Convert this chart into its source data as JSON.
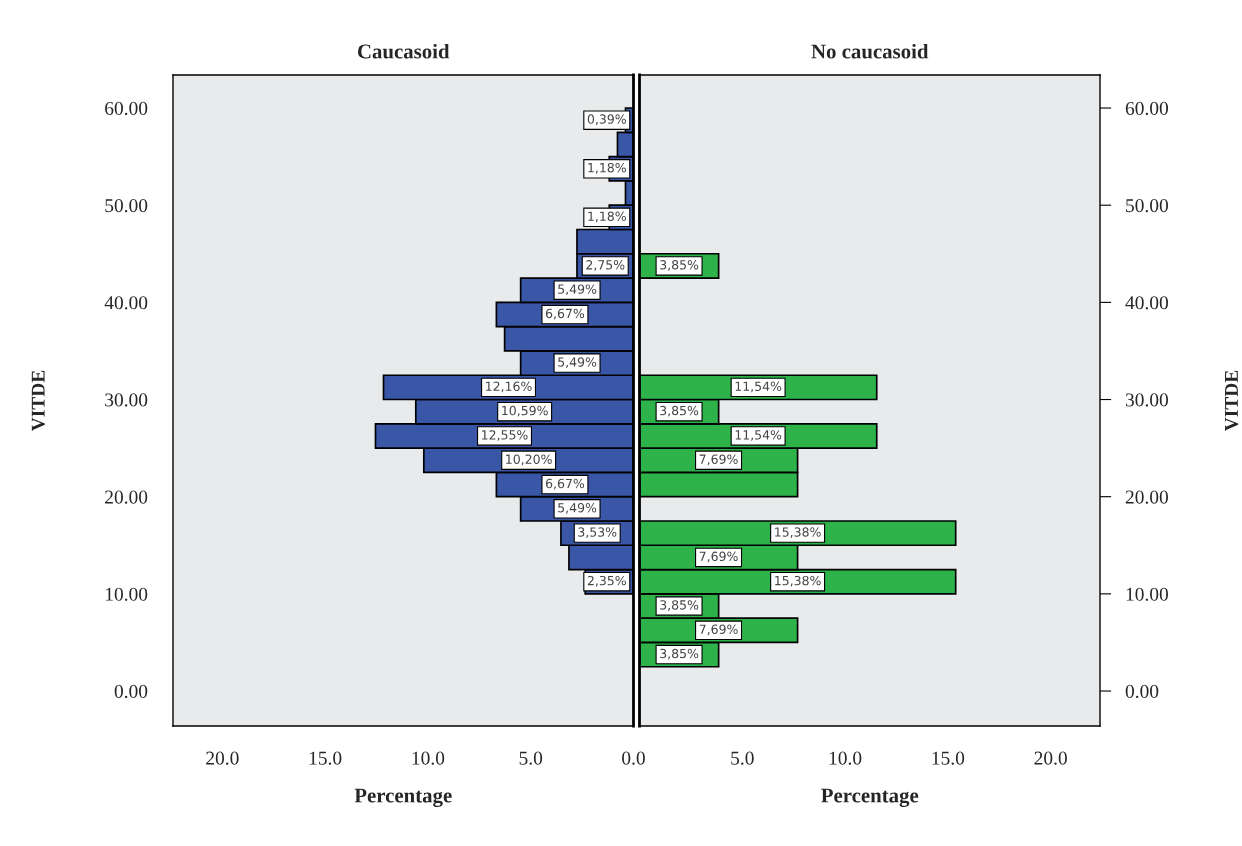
{
  "chart_data": [
    {
      "type": "histogram",
      "orientation": "horizontal",
      "title": "Caucasoid",
      "xlabel": "Percentage",
      "ylabel": "VITDE",
      "color": "#3a56a6",
      "bins": [
        2.5,
        5,
        7.5,
        10,
        12.5,
        15,
        17.5,
        20,
        22.5,
        25,
        27.5,
        30,
        32.5,
        35,
        37.5,
        40,
        42.5,
        45,
        47.5,
        50,
        52.5,
        55,
        57.5,
        60
      ],
      "values": [
        null,
        null,
        null,
        2.35,
        3.14,
        3.53,
        5.49,
        6.67,
        10.2,
        12.55,
        10.59,
        12.16,
        5.49,
        6.27,
        6.67,
        5.49,
        2.75,
        2.75,
        1.18,
        0.39,
        1.18,
        0.78,
        0.39
      ],
      "value_labels": [
        null,
        null,
        null,
        "2,35%",
        null,
        "3,53%",
        "5,49%",
        "6,67%",
        "10,20%",
        "12,55%",
        "10,59%",
        "12,16%",
        "5,49%",
        null,
        "6,67%",
        "5,49%",
        "2,75%",
        null,
        "1,18%",
        null,
        "1,18%",
        null,
        "0,39%"
      ],
      "xlim": [
        22.4,
        0
      ],
      "xticks": [
        {
          "value": 20,
          "label": "20.0"
        },
        {
          "value": 15,
          "label": "15.0"
        },
        {
          "value": 10,
          "label": "10.0"
        },
        {
          "value": 5,
          "label": "5.0"
        },
        {
          "value": 0,
          "label": "0.0"
        }
      ],
      "ylim": [
        -3.6,
        63.4
      ],
      "yticks": [
        {
          "value": 0,
          "label": "0.00"
        },
        {
          "value": 10,
          "label": "10.00"
        },
        {
          "value": 20,
          "label": "20.00"
        },
        {
          "value": 30,
          "label": "30.00"
        },
        {
          "value": 40,
          "label": "40.00"
        },
        {
          "value": 50,
          "label": "50.00"
        },
        {
          "value": 60,
          "label": "60.00"
        }
      ]
    },
    {
      "type": "histogram",
      "orientation": "horizontal",
      "title": "No caucasoid",
      "xlabel": "Percentage",
      "ylabel": "VITDE",
      "color": "#2db34a",
      "bins": [
        2.5,
        5,
        7.5,
        10,
        12.5,
        15,
        17.5,
        20,
        22.5,
        25,
        27.5,
        30,
        32.5,
        35,
        37.5,
        40,
        42.5,
        45,
        47.5,
        50,
        52.5,
        55,
        57.5,
        60
      ],
      "values": [
        3.85,
        7.69,
        3.85,
        15.38,
        7.69,
        15.38,
        null,
        7.69,
        7.69,
        11.54,
        3.85,
        11.54,
        null,
        null,
        null,
        null,
        3.85,
        null,
        null,
        null,
        null,
        null,
        null
      ],
      "value_labels": [
        "3,85%",
        "7,69%",
        "3,85%",
        "15,38%",
        "7,69%",
        "15,38%",
        null,
        null,
        "7,69%",
        "11,54%",
        "3,85%",
        "11,54%",
        null,
        null,
        null,
        null,
        "3,85%",
        null,
        null,
        null,
        null,
        null,
        null
      ],
      "xlim": [
        0,
        22.4
      ],
      "xticks": [
        {
          "value": 0,
          "label": null
        },
        {
          "value": 5,
          "label": "5.0"
        },
        {
          "value": 10,
          "label": "10.0"
        },
        {
          "value": 15,
          "label": "15.0"
        },
        {
          "value": 20,
          "label": "20.0"
        }
      ],
      "ylim": [
        -3.6,
        63.4
      ],
      "yticks": [
        {
          "value": 0,
          "label": "0.00"
        },
        {
          "value": 10,
          "label": "10.00"
        },
        {
          "value": 20,
          "label": "20.00"
        },
        {
          "value": 30,
          "label": "30.00"
        },
        {
          "value": 40,
          "label": "40.00"
        },
        {
          "value": 50,
          "label": "50.00"
        },
        {
          "value": 60,
          "label": "60.00"
        }
      ]
    }
  ]
}
